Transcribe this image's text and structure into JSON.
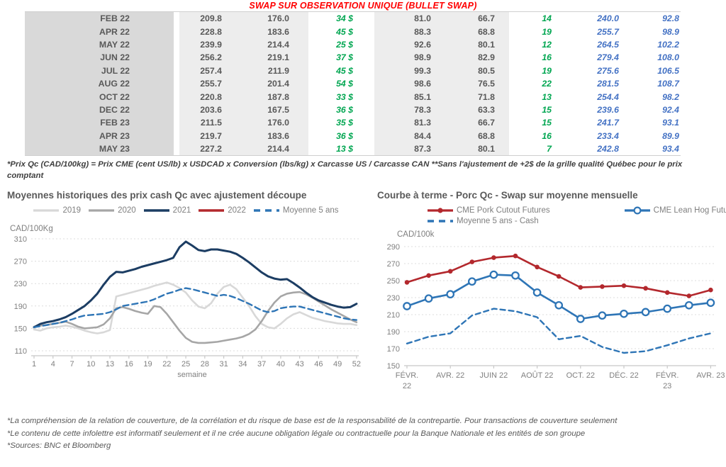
{
  "header": {
    "title": "SWAP SUR OBSERVATION UNIQUE (BULLET SWAP)",
    "color": "#ff0000"
  },
  "table": {
    "rows": [
      [
        "FEB 22",
        "209.8",
        "176.0",
        "34 $",
        "81.0",
        "66.7",
        "14",
        "240.0",
        "92.8"
      ],
      [
        "APR 22",
        "228.8",
        "183.6",
        "45 $",
        "88.3",
        "68.8",
        "19",
        "255.7",
        "98.9"
      ],
      [
        "MAY 22",
        "239.9",
        "214.4",
        "25 $",
        "92.6",
        "80.1",
        "12",
        "264.5",
        "102.2"
      ],
      [
        "JUN 22",
        "256.2",
        "219.1",
        "37 $",
        "98.9",
        "82.9",
        "16",
        "279.4",
        "108.0"
      ],
      [
        "JUL 22",
        "257.4",
        "211.9",
        "45 $",
        "99.3",
        "80.5",
        "19",
        "275.6",
        "106.5"
      ],
      [
        "AUG 22",
        "255.7",
        "201.4",
        "54 $",
        "98.6",
        "76.5",
        "22",
        "281.5",
        "108.7"
      ],
      [
        "OCT 22",
        "220.8",
        "187.8",
        "33 $",
        "85.1",
        "71.8",
        "13",
        "254.4",
        "98.2"
      ],
      [
        "DEC 22",
        "203.6",
        "167.5",
        "36 $",
        "78.3",
        "63.3",
        "15",
        "239.6",
        "92.4"
      ],
      [
        "FEB 23",
        "211.5",
        "176.0",
        "35 $",
        "81.3",
        "66.7",
        "15",
        "241.7",
        "93.1"
      ],
      [
        "APR 23",
        "219.7",
        "183.6",
        "36 $",
        "84.4",
        "68.8",
        "16",
        "233.4",
        "89.9"
      ],
      [
        "MAY 23",
        "227.2",
        "214.4",
        "13 $",
        "87.3",
        "80.1",
        "7",
        "242.8",
        "93.4"
      ]
    ],
    "footnote": "*Prix Qc (CAD/100kg) = Prix CME (cent US/lb) x USDCAD x Conversion (lbs/kg) x Carcasse US / Carcasse CAN **Sans l'ajustement de +2$ de la grille qualité Québec pour le prix comptant",
    "colors": {
      "value_text": "#595959",
      "positive_green": "#00a651",
      "forward_blue": "#4472c4",
      "month_bg": "#d9d9d9",
      "value_bg": "#ededed"
    }
  },
  "chart_data": [
    {
      "type": "line",
      "title": "Moyennes historiques des prix cash Qc avec ajustement découpe",
      "ylabel": "CAD/100Kg",
      "xlabel": "semaine",
      "ylim": [
        110,
        310
      ],
      "yticks": [
        110,
        150,
        190,
        230,
        270,
        310
      ],
      "xticks": [
        1,
        4,
        7,
        10,
        13,
        16,
        19,
        22,
        25,
        28,
        31,
        34,
        37,
        40,
        43,
        46,
        49,
        52
      ],
      "grid": "dashed horizontal",
      "legend_position": "top center",
      "series": [
        {
          "name": "2019",
          "color": "#d8d8d8",
          "width": 2.6,
          "swatch": "line",
          "values": [
            148,
            146,
            150,
            152,
            153,
            155,
            153,
            150,
            146,
            143,
            141,
            143,
            147,
            207,
            210,
            213,
            216,
            219,
            222,
            226,
            229,
            232,
            228,
            222,
            214,
            200,
            189,
            186,
            195,
            212,
            224,
            228,
            220,
            205,
            190,
            172,
            158,
            152,
            150,
            158,
            168,
            175,
            179,
            174,
            169,
            166,
            163,
            161,
            159,
            158,
            158,
            156
          ]
        },
        {
          "name": "2020",
          "color": "#a6a6a6",
          "width": 2.6,
          "swatch": "line",
          "values": [
            153,
            155,
            156,
            158,
            160,
            162,
            158,
            153,
            150,
            151,
            152,
            157,
            168,
            186,
            188,
            185,
            181,
            178,
            176,
            190,
            188,
            176,
            161,
            146,
            133,
            126,
            124,
            124,
            125,
            126,
            128,
            130,
            132,
            135,
            140,
            148,
            163,
            181,
            196,
            207,
            212,
            214,
            215,
            211,
            205,
            198,
            191,
            184,
            178,
            172,
            166,
            161
          ]
        },
        {
          "name": "2021",
          "color": "#1c3d63",
          "width": 3,
          "swatch": "line",
          "values": [
            152,
            158,
            161,
            163,
            166,
            170,
            176,
            183,
            190,
            200,
            212,
            228,
            242,
            251,
            250,
            253,
            256,
            260,
            263,
            266,
            269,
            272,
            276,
            295,
            305,
            298,
            290,
            288,
            291,
            291,
            289,
            287,
            283,
            276,
            268,
            259,
            250,
            243,
            239,
            237,
            238,
            231,
            223,
            214,
            206,
            200,
            196,
            192,
            189,
            187,
            188,
            194
          ]
        },
        {
          "name": "2022",
          "color": "#b3282d",
          "width": 3,
          "swatch": "line",
          "values": []
        },
        {
          "name": "Moyenne 5 ans",
          "color": "#2e75b6",
          "width": 2.4,
          "swatch": "dashes",
          "dash": "8 5",
          "values": [
            152,
            154,
            156,
            158,
            160,
            163,
            166,
            170,
            173,
            174,
            175,
            176,
            179,
            184,
            190,
            192,
            194,
            196,
            198,
            202,
            207,
            212,
            215,
            219,
            222,
            220,
            217,
            214,
            211,
            208,
            210,
            208,
            204,
            199,
            194,
            188,
            182,
            179,
            181,
            186,
            188,
            189,
            189,
            186,
            183,
            180,
            177,
            174,
            171,
            168,
            166,
            165
          ]
        }
      ]
    },
    {
      "type": "line",
      "title": "Courbe à terme - Porc Qc - Swap sur moyenne mensuelle",
      "ylabel": "CAD/100k",
      "xlabel": "",
      "ylim": [
        150,
        290
      ],
      "yticks": [
        150,
        170,
        190,
        210,
        230,
        250,
        270,
        290
      ],
      "xticklabels": [
        [
          "FÉVR.",
          "22"
        ],
        [
          "AVR. 22"
        ],
        [
          "JUIN 22"
        ],
        [
          "AOÛT 22"
        ],
        [
          "OCT. 22"
        ],
        [
          "DÉC. 22"
        ],
        [
          "FÉVR.",
          "23"
        ],
        [
          "AVR. 23"
        ]
      ],
      "x_months": [
        "FÉVR. 22",
        "MARS 22",
        "AVR. 22",
        "MAI 22",
        "JUIN 22",
        "JUIL. 22",
        "AOÛT 22",
        "SEPT. 22",
        "OCT. 22",
        "NOV. 22",
        "DÉC. 22",
        "JANV. 23",
        "FÉVR. 23",
        "MARS 23",
        "AVR. 23"
      ],
      "grid": "dashed horizontal",
      "legend_position": "top left, two rows",
      "series": [
        {
          "name": "CME Pork Cutout Futures",
          "color": "#b3282d",
          "width": 2.6,
          "swatch": "line-dot",
          "marker": "dot",
          "values": [
            248,
            256,
            261,
            272,
            277,
            279,
            266,
            255,
            242,
            243,
            244,
            241,
            236,
            232,
            239
          ]
        },
        {
          "name": "CME Lean Hog Futures",
          "color": "#2e75b6",
          "width": 2.6,
          "swatch": "line-circle",
          "marker": "circle",
          "values": [
            220,
            229,
            234,
            249,
            257,
            256,
            236,
            221,
            205,
            209,
            211,
            213,
            217,
            221,
            224
          ]
        },
        {
          "name": "Moyenne 5 ans - Cash",
          "color": "#2e75b6",
          "width": 2.4,
          "swatch": "dashes",
          "dash": "7 5",
          "values": [
            176,
            184,
            188,
            209,
            217,
            214,
            207,
            181,
            185,
            172,
            165,
            167,
            174,
            182,
            188
          ]
        }
      ]
    }
  ],
  "footer": {
    "lines": [
      "*La compréhension de la relation de couverture, de la corrélation et du risque de base est de la responsabilité de la contrepartie. Pour transactions de couverture seulement",
      "*Le contenu de cette infolettre est informatif seulement et il ne crée aucune obligation légale ou contractuelle pour la Banque Nationale et les entités de son groupe",
      "*Sources: BNC et Bloomberg"
    ]
  }
}
